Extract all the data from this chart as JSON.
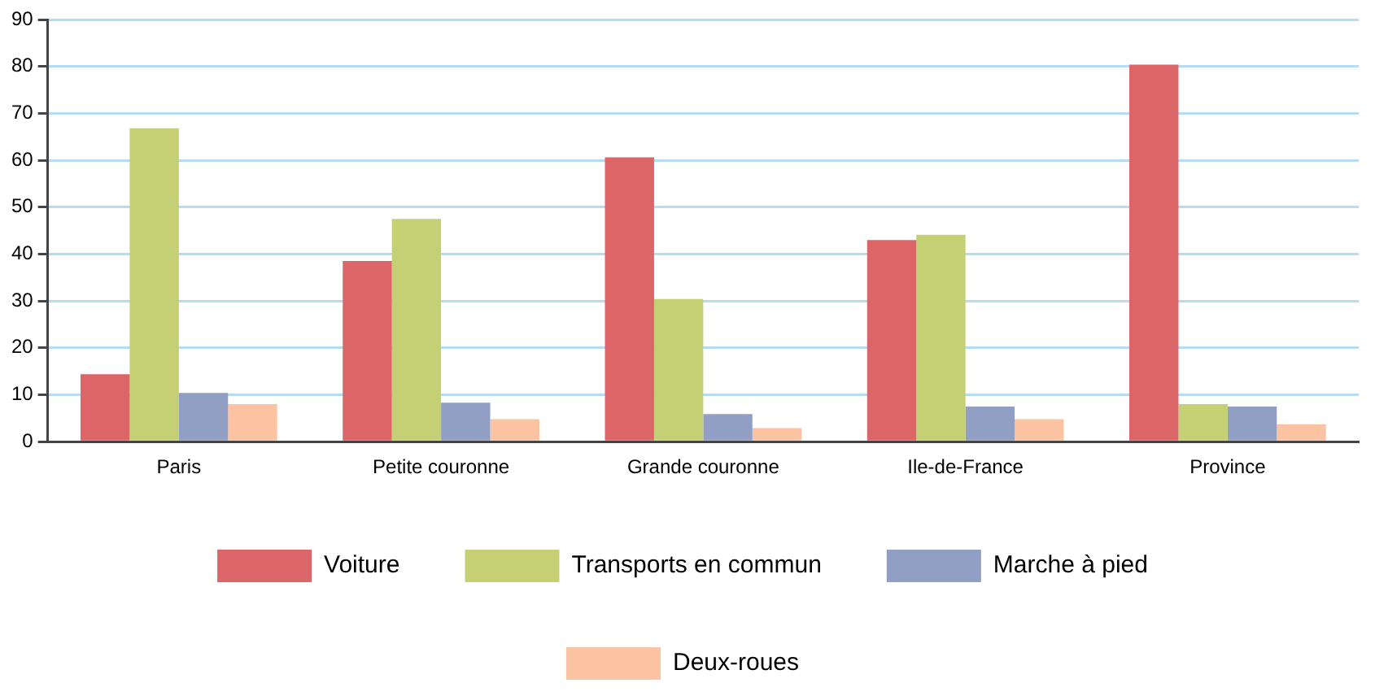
{
  "chart_data": {
    "type": "bar",
    "categories": [
      "Paris",
      "Petite couronne",
      "Grande couronne",
      "Ile-de-France",
      "Province"
    ],
    "series": [
      {
        "name": "Voiture",
        "color": "#dc6567",
        "values": [
          14.4,
          38.5,
          60.6,
          43.0,
          80.4
        ]
      },
      {
        "name": "Transports en commun",
        "color": "#c5cf74",
        "values": [
          66.8,
          47.5,
          30.4,
          44.1,
          8.0
        ]
      },
      {
        "name": "Marche à pied",
        "color": "#909fc3",
        "values": [
          10.4,
          8.3,
          5.9,
          7.5,
          7.5
        ]
      },
      {
        "name": "Deux-roues",
        "color": "#fcc3a3",
        "values": [
          8.0,
          4.8,
          2.9,
          4.8,
          3.7
        ]
      }
    ],
    "ylim": [
      0,
      90
    ],
    "yticks": [
      0,
      10,
      20,
      30,
      40,
      50,
      60,
      70,
      80,
      90
    ],
    "grid": "y",
    "legend": "bottom"
  }
}
